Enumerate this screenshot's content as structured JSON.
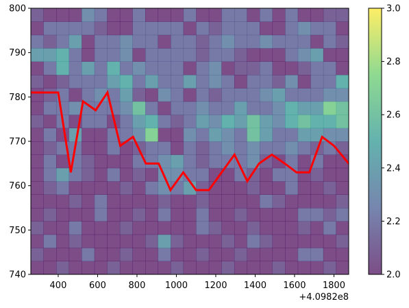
{
  "chart_data": {
    "type": "heatmap",
    "title": "",
    "xlabel": "",
    "ylabel": "",
    "x_offset_label": "+4.0982e8",
    "xlim": [
      261,
      1875
    ],
    "ylim": [
      740,
      800
    ],
    "x_ticks": [
      400,
      600,
      800,
      1000,
      1200,
      1400,
      1600,
      1800
    ],
    "x_tick_labels": [
      "400",
      "600",
      "800",
      "1000",
      "1200",
      "1400",
      "1600",
      "1800"
    ],
    "y_ticks": [
      740,
      750,
      760,
      770,
      780,
      790,
      800
    ],
    "y_tick_labels": [
      "740",
      "750",
      "760",
      "770",
      "780",
      "790",
      "800"
    ],
    "colorbar": {
      "min": 2.0,
      "max": 3.0,
      "colormap": "viridis",
      "alpha": 0.7,
      "ticks": [
        2.0,
        2.2,
        2.4,
        2.6,
        2.8,
        3.0
      ],
      "tick_labels": [
        "2.0",
        "2.2",
        "2.4",
        "2.6",
        "2.8",
        "3.0"
      ]
    },
    "heatmap": {
      "cols": 25,
      "rows": 20,
      "x_range": [
        261,
        1875
      ],
      "y_range": [
        740,
        800
      ],
      "note": "values estimated; rows listed bottom (y=740) to top (y=800)",
      "values": [
        [
          2.0,
          2.0,
          2.1,
          2.0,
          2.0,
          2.0,
          2.1,
          2.0,
          2.0,
          2.0,
          2.0,
          2.1,
          2.0,
          2.0,
          2.0,
          2.1,
          2.0,
          2.0,
          2.0,
          2.1,
          2.0,
          2.0,
          2.0,
          2.1,
          2.0
        ],
        [
          2.1,
          2.0,
          2.0,
          2.0,
          2.2,
          2.0,
          2.0,
          2.1,
          2.0,
          2.0,
          2.2,
          2.0,
          2.0,
          2.1,
          2.0,
          2.0,
          2.1,
          2.0,
          2.0,
          2.0,
          2.0,
          2.2,
          2.2,
          2.0,
          2.0
        ],
        [
          2.0,
          2.2,
          2.0,
          2.1,
          2.0,
          2.0,
          2.0,
          2.0,
          2.0,
          2.1,
          2.4,
          2.1,
          2.0,
          2.0,
          2.0,
          2.1,
          2.0,
          2.2,
          2.1,
          2.0,
          2.0,
          2.0,
          2.0,
          2.0,
          2.1
        ],
        [
          2.1,
          2.0,
          2.0,
          2.2,
          2.0,
          2.0,
          2.0,
          2.1,
          2.0,
          2.0,
          2.0,
          2.0,
          2.0,
          2.2,
          2.1,
          2.0,
          2.0,
          2.1,
          2.0,
          2.0,
          2.0,
          2.1,
          2.0,
          2.2,
          2.0
        ],
        [
          2.0,
          2.1,
          2.0,
          2.0,
          2.0,
          2.2,
          2.0,
          2.0,
          2.1,
          2.0,
          2.2,
          2.0,
          2.0,
          2.2,
          2.0,
          2.0,
          2.1,
          2.0,
          2.0,
          2.0,
          2.0,
          2.2,
          2.2,
          2.1,
          2.2
        ],
        [
          2.0,
          2.0,
          2.0,
          2.1,
          2.0,
          2.2,
          2.0,
          2.0,
          2.0,
          2.0,
          2.1,
          2.0,
          2.0,
          2.1,
          2.0,
          2.0,
          2.0,
          2.0,
          2.2,
          2.1,
          2.0,
          2.0,
          2.0,
          2.0,
          2.1
        ],
        [
          2.0,
          2.1,
          2.2,
          2.0,
          2.0,
          2.0,
          2.0,
          2.1,
          2.0,
          2.2,
          2.3,
          2.2,
          2.4,
          2.1,
          2.0,
          2.0,
          2.0,
          2.1,
          2.0,
          2.0,
          2.2,
          2.0,
          2.0,
          2.1,
          2.0
        ],
        [
          2.0,
          2.2,
          2.4,
          2.2,
          2.1,
          2.0,
          2.2,
          2.0,
          2.1,
          2.0,
          2.3,
          2.3,
          2.2,
          2.2,
          2.0,
          2.0,
          2.2,
          2.1,
          2.0,
          2.2,
          2.2,
          2.0,
          2.1,
          2.0,
          2.0
        ],
        [
          2.0,
          2.2,
          2.0,
          2.2,
          2.1,
          2.0,
          2.0,
          2.0,
          2.2,
          2.2,
          2.3,
          2.4,
          2.2,
          2.1,
          2.2,
          2.2,
          2.2,
          2.3,
          2.1,
          2.0,
          2.2,
          2.0,
          2.2,
          2.0,
          2.0
        ],
        [
          2.0,
          2.1,
          2.2,
          2.2,
          2.0,
          2.0,
          2.2,
          2.0,
          2.1,
          2.2,
          2.2,
          2.0,
          2.2,
          2.1,
          2.2,
          2.3,
          2.2,
          2.3,
          2.2,
          2.2,
          2.3,
          2.2,
          2.1,
          2.2,
          2.1
        ],
        [
          2.0,
          2.2,
          2.0,
          2.4,
          2.0,
          2.0,
          2.2,
          2.2,
          2.3,
          2.7,
          2.0,
          2.0,
          2.3,
          2.2,
          2.4,
          2.3,
          2.2,
          2.6,
          2.4,
          2.2,
          2.2,
          2.4,
          2.4,
          2.3,
          2.3
        ],
        [
          2.1,
          2.0,
          2.2,
          2.0,
          2.2,
          2.2,
          2.0,
          2.2,
          2.4,
          2.5,
          2.2,
          2.1,
          2.2,
          2.4,
          2.3,
          2.5,
          2.4,
          2.6,
          2.4,
          2.3,
          2.5,
          2.6,
          2.5,
          2.5,
          2.6
        ],
        [
          2.0,
          2.2,
          2.2,
          2.3,
          2.2,
          2.2,
          2.2,
          2.3,
          2.6,
          2.2,
          2.0,
          2.2,
          2.2,
          2.3,
          2.2,
          2.2,
          2.4,
          2.2,
          2.2,
          2.3,
          2.5,
          2.4,
          2.4,
          2.7,
          2.6
        ],
        [
          2.0,
          2.1,
          2.2,
          2.0,
          2.2,
          2.3,
          2.2,
          2.4,
          2.1,
          2.0,
          2.3,
          2.2,
          2.0,
          2.2,
          2.1,
          2.2,
          2.2,
          2.2,
          2.3,
          2.4,
          2.2,
          2.2,
          2.2,
          2.3,
          2.3
        ],
        [
          2.1,
          2.0,
          2.1,
          2.2,
          2.2,
          2.2,
          2.4,
          2.5,
          2.2,
          2.4,
          2.2,
          2.2,
          2.4,
          2.2,
          2.3,
          2.2,
          2.0,
          2.2,
          2.2,
          2.1,
          2.3,
          2.0,
          2.2,
          2.2,
          2.5
        ],
        [
          2.0,
          2.2,
          2.5,
          2.2,
          2.4,
          2.2,
          2.5,
          2.2,
          2.3,
          2.2,
          2.2,
          2.2,
          2.0,
          2.2,
          2.3,
          2.0,
          2.1,
          2.1,
          2.2,
          2.0,
          2.0,
          2.1,
          2.2,
          2.2,
          2.0
        ],
        [
          2.4,
          2.4,
          2.5,
          2.2,
          2.0,
          2.2,
          2.2,
          2.3,
          2.0,
          2.2,
          2.2,
          2.2,
          2.2,
          2.1,
          2.2,
          2.2,
          2.1,
          2.0,
          2.0,
          2.0,
          2.2,
          2.3,
          2.4,
          2.0,
          2.0
        ],
        [
          2.2,
          2.1,
          2.2,
          2.4,
          2.0,
          2.2,
          2.2,
          2.3,
          2.2,
          2.2,
          2.0,
          2.2,
          2.2,
          2.1,
          2.2,
          2.3,
          2.2,
          2.2,
          2.3,
          2.2,
          2.2,
          2.2,
          2.0,
          2.2,
          2.1
        ],
        [
          2.0,
          2.2,
          2.2,
          2.2,
          2.2,
          2.1,
          2.0,
          2.0,
          2.2,
          2.2,
          2.2,
          2.2,
          2.0,
          2.2,
          2.1,
          2.2,
          2.2,
          2.2,
          2.0,
          2.0,
          2.2,
          2.3,
          2.2,
          2.2,
          2.0
        ],
        [
          2.1,
          2.0,
          2.0,
          2.0,
          2.3,
          2.2,
          2.0,
          2.0,
          2.2,
          2.0,
          2.0,
          2.0,
          2.2,
          2.0,
          2.0,
          2.2,
          2.2,
          2.0,
          2.2,
          2.0,
          2.2,
          2.0,
          2.0,
          2.1,
          2.1
        ]
      ]
    },
    "series": [
      {
        "name": "line",
        "color": "#ff0000",
        "x": [
          261,
          330,
          400,
          464,
          526,
          590,
          650,
          715,
          780,
          845,
          910,
          970,
          1035,
          1100,
          1165,
          1230,
          1295,
          1360,
          1420,
          1485,
          1550,
          1610,
          1675,
          1740,
          1800,
          1875
        ],
        "y": [
          781,
          781,
          781,
          763,
          779,
          777,
          781,
          769,
          771,
          765,
          765,
          759,
          763,
          759,
          759,
          763,
          767,
          761,
          765,
          767,
          765,
          763,
          763,
          771,
          769,
          765
        ]
      }
    ]
  }
}
